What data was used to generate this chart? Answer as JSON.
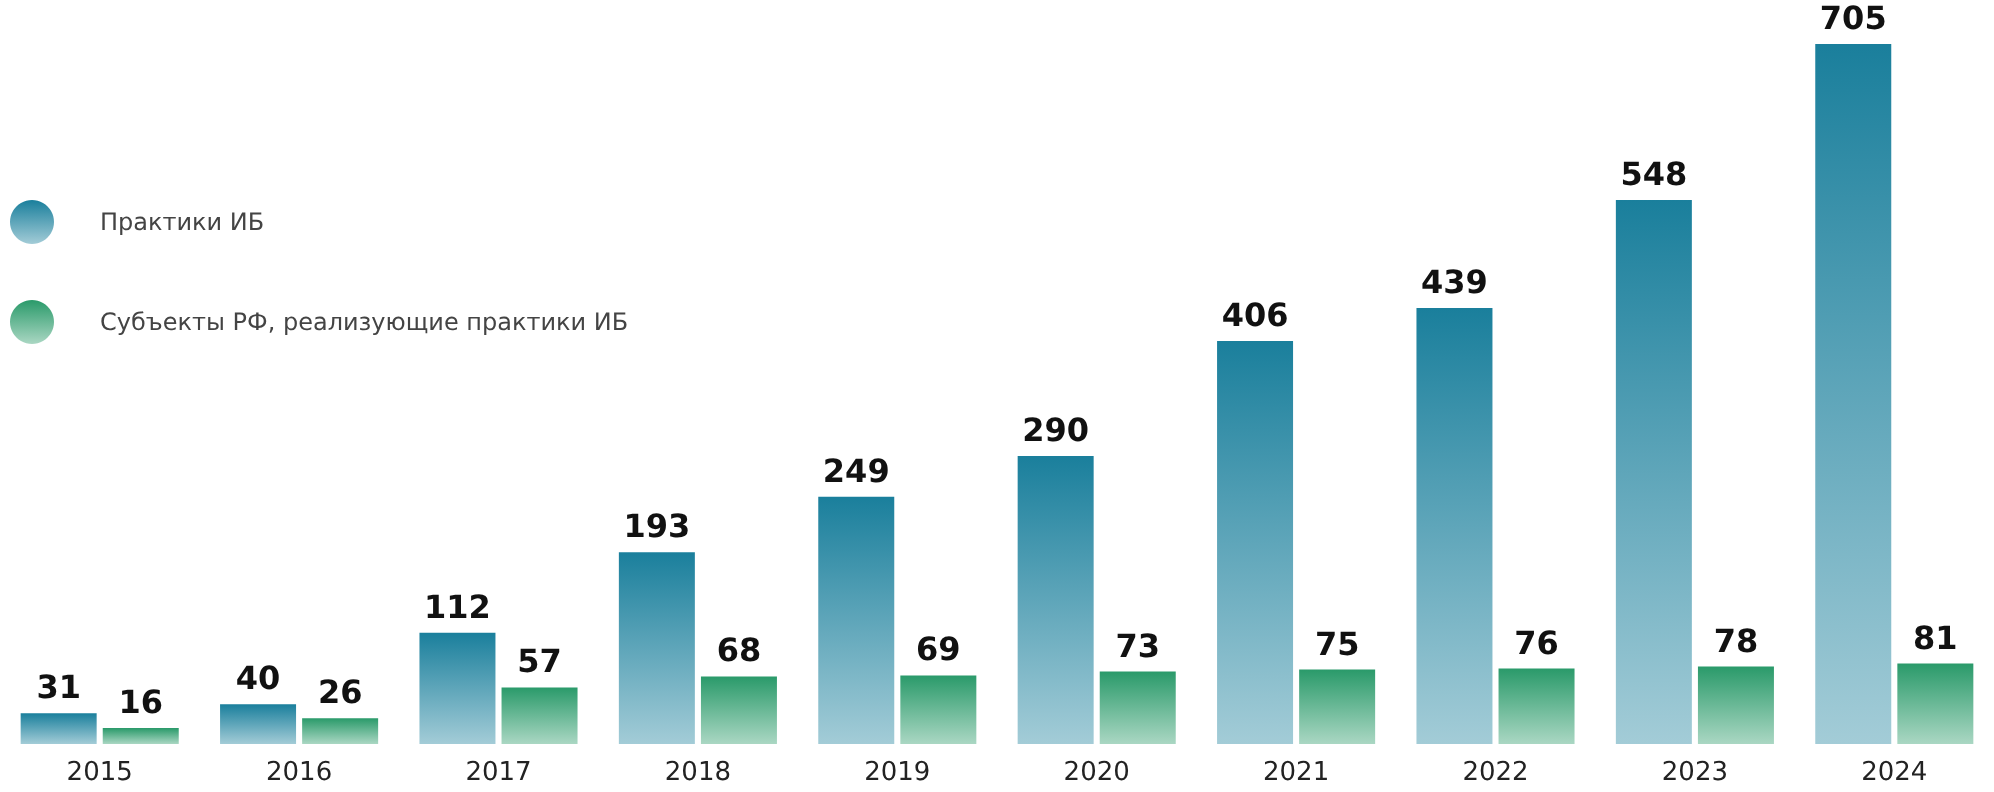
{
  "chart_data": {
    "type": "bar",
    "categories": [
      "2015",
      "2016",
      "2017",
      "2018",
      "2019",
      "2020",
      "2021",
      "2022",
      "2023",
      "2024"
    ],
    "series": [
      {
        "name": "Практики ИБ",
        "color": "#1a7f9c",
        "values": [
          31,
          40,
          112,
          193,
          249,
          290,
          406,
          439,
          548,
          705
        ]
      },
      {
        "name": "Субъекты РФ, реализующие практики ИБ",
        "color": "#2a9a6a",
        "values": [
          16,
          26,
          57,
          68,
          69,
          73,
          75,
          76,
          78,
          81
        ]
      }
    ],
    "data_labels": true,
    "legend": "left"
  }
}
